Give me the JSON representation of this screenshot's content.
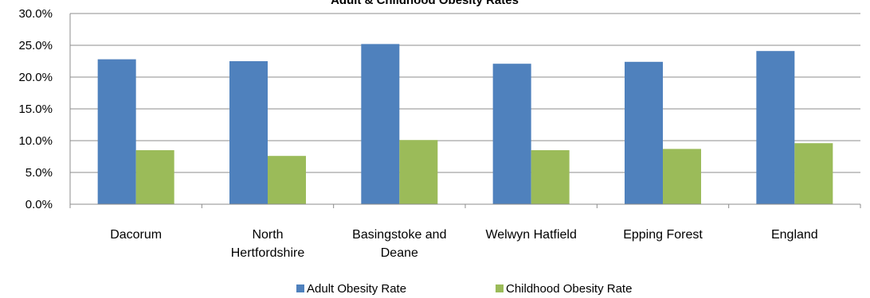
{
  "chart_data": {
    "type": "bar",
    "title": "Adult & Childhood Obesity Rates",
    "xlabel": "",
    "ylabel": "",
    "categories": [
      "Dacorum",
      "North Hertfordshire",
      "Basingstoke and Deane",
      "Welwyn Hatfield",
      "Epping Forest",
      "England"
    ],
    "category_lines": [
      [
        "Dacorum"
      ],
      [
        "North",
        "Hertfordshire"
      ],
      [
        "Basingstoke and",
        "Deane"
      ],
      [
        "Welwyn Hatfield"
      ],
      [
        "Epping Forest"
      ],
      [
        "England"
      ]
    ],
    "series": [
      {
        "name": "Adult Obesity Rate",
        "color": "#4F81BD",
        "values": [
          22.8,
          22.5,
          25.2,
          22.1,
          22.4,
          24.1
        ]
      },
      {
        "name": "Childhood Obesity Rate",
        "color": "#9BBB59",
        "values": [
          8.5,
          7.6,
          10.1,
          8.5,
          8.7,
          9.6
        ]
      }
    ],
    "ylim": [
      0,
      30
    ],
    "yticks": [
      0,
      5,
      10,
      15,
      20,
      25,
      30
    ],
    "ytick_labels": [
      "0.0%",
      "5.0%",
      "10.0%",
      "15.0%",
      "20.0%",
      "25.0%",
      "30.0%"
    ],
    "grid": true,
    "legend_position": "bottom"
  }
}
